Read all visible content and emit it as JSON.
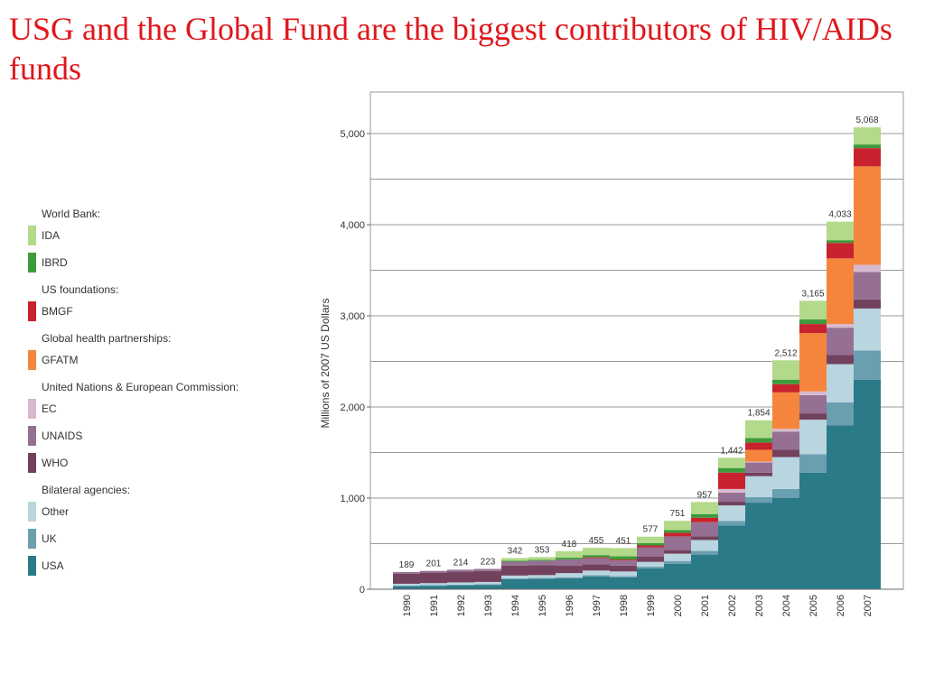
{
  "slide_title": "USG and the Global Fund are the biggest contributors of HIV/AIDs funds",
  "chart_data": {
    "type": "bar",
    "stacked": true,
    "title": "",
    "xlabel": "",
    "ylabel": "Millions of 2007 US Dollars",
    "ylim": [
      0,
      5400
    ],
    "yticks": [
      0,
      1000,
      2000,
      3000,
      4000,
      5000
    ],
    "ytick_labels": [
      "0",
      "1,000",
      "2,000",
      "3,000",
      "4,000",
      "5,000"
    ],
    "grid": true,
    "legend_position": "left",
    "categories": [
      "1990",
      "1991",
      "1992",
      "1993",
      "1994",
      "1995",
      "1996",
      "1997",
      "1998",
      "1999",
      "2000",
      "2001",
      "2002",
      "2003",
      "2004",
      "2005",
      "2006",
      "2007"
    ],
    "totals": [
      189,
      201,
      214,
      223,
      342,
      353,
      418,
      455,
      451,
      577,
      751,
      957,
      1442,
      1854,
      2512,
      3165,
      4033,
      5068
    ],
    "total_labels": [
      "189",
      "201",
      "214",
      "223",
      "342",
      "353",
      "418",
      "455",
      "451",
      "577",
      "751",
      "957",
      "1,442",
      "1,854",
      "2,512",
      "3,165",
      "4,033",
      "5,068"
    ],
    "legend_groups": [
      {
        "heading": "World Bank:",
        "items": [
          "IDA",
          "IBRD"
        ]
      },
      {
        "heading": "US foundations:",
        "items": [
          "BMGF"
        ]
      },
      {
        "heading": "Global health partnerships:",
        "items": [
          "GFATM"
        ]
      },
      {
        "heading": "United Nations & European Commission:",
        "items": [
          "EC",
          "UNAIDS",
          "WHO"
        ]
      },
      {
        "heading": "Bilateral agencies:",
        "items": [
          "Other",
          "UK",
          "USA"
        ]
      }
    ],
    "series": [
      {
        "name": "USA",
        "color": "#2b7a87",
        "values": [
          30,
          35,
          40,
          45,
          110,
          115,
          120,
          140,
          130,
          230,
          280,
          380,
          700,
          950,
          1000,
          1280,
          1800,
          2300
        ]
      },
      {
        "name": "UK",
        "color": "#6a9fb0",
        "values": [
          10,
          10,
          10,
          10,
          10,
          10,
          12,
          15,
          15,
          20,
          30,
          40,
          50,
          60,
          100,
          200,
          250,
          320
        ]
      },
      {
        "name": "Other",
        "color": "#b9d5df",
        "values": [
          20,
          22,
          25,
          25,
          30,
          30,
          45,
          50,
          50,
          50,
          80,
          120,
          170,
          230,
          350,
          380,
          420,
          460
        ]
      },
      {
        "name": "WHO",
        "color": "#72415d",
        "values": [
          110,
          115,
          120,
          120,
          110,
          110,
          80,
          70,
          65,
          60,
          40,
          40,
          40,
          40,
          80,
          70,
          100,
          100
        ]
      },
      {
        "name": "UNAIDS",
        "color": "#957093",
        "values": [
          19,
          19,
          19,
          23,
          42,
          48,
          71,
          65,
          56,
          100,
          150,
          155,
          100,
          110,
          200,
          200,
          300,
          300
        ]
      },
      {
        "name": "EC",
        "color": "#d7b9cf",
        "values": [
          0,
          0,
          0,
          0,
          0,
          0,
          0,
          0,
          0,
          0,
          0,
          0,
          40,
          10,
          30,
          40,
          40,
          80
        ]
      },
      {
        "name": "GFATM",
        "color": "#f5853c",
        "values": [
          0,
          0,
          0,
          0,
          0,
          0,
          0,
          0,
          0,
          0,
          0,
          0,
          0,
          130,
          400,
          640,
          720,
          1080
        ]
      },
      {
        "name": "BMGF",
        "color": "#c8222f",
        "values": [
          0,
          0,
          0,
          0,
          0,
          0,
          0,
          10,
          10,
          20,
          40,
          50,
          180,
          80,
          90,
          100,
          170,
          200
        ]
      },
      {
        "name": "IBRD",
        "color": "#3e9a3c",
        "values": [
          0,
          0,
          0,
          0,
          10,
          10,
          20,
          25,
          35,
          25,
          30,
          40,
          50,
          50,
          50,
          50,
          30,
          40
        ]
      },
      {
        "name": "IDA",
        "color": "#b3d98a",
        "values": [
          0,
          0,
          0,
          0,
          30,
          30,
          70,
          80,
          90,
          72,
          101,
          132,
          112,
          194,
          212,
          205,
          203,
          188
        ]
      }
    ]
  }
}
